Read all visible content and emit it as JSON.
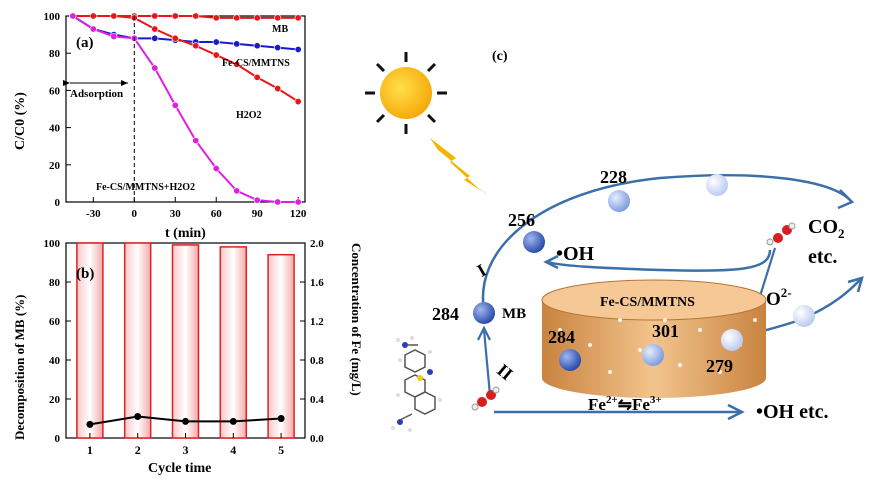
{
  "chart_data": [
    {
      "panel": "(a)",
      "type": "line",
      "xlabel": "t (min)",
      "ylabel": "C/C0 (%)",
      "xlim": [
        -50,
        125
      ],
      "ylim": [
        0,
        100
      ],
      "xticks": [
        -30,
        0,
        30,
        60,
        90,
        120
      ],
      "yticks": [
        0,
        20,
        40,
        60,
        80,
        100
      ],
      "annotation": "Adsorption",
      "series": [
        {
          "name": "MB",
          "color": "#e8161b",
          "label": "MB",
          "x": [
            -45,
            -30,
            -15,
            0,
            15,
            30,
            45,
            60,
            75,
            90,
            105,
            120
          ],
          "y": [
            100,
            100,
            100,
            100,
            100,
            100,
            100,
            99,
            99,
            99,
            99,
            99
          ]
        },
        {
          "name": "Fe-CS/MMTNS",
          "color": "#1a1acc",
          "label": "Fe-CS/MMTNS",
          "x": [
            -45,
            -30,
            -15,
            0,
            15,
            30,
            45,
            60,
            75,
            90,
            105,
            120
          ],
          "y": [
            100,
            93,
            90,
            88,
            88,
            87,
            86,
            86,
            85,
            84,
            83,
            82
          ]
        },
        {
          "name": "H2O2",
          "color": "#e8161b",
          "label": "H2O2",
          "x": [
            -45,
            -30,
            -15,
            0,
            15,
            30,
            45,
            60,
            75,
            90,
            105,
            120
          ],
          "y": [
            100,
            100,
            100,
            99,
            93,
            88,
            84,
            79,
            74,
            67,
            61,
            54
          ]
        },
        {
          "name": "Fe-CS/MMTNS+H2O2",
          "color": "#e020e0",
          "label": "Fe-CS/MMTNS+H2O2",
          "x": [
            -45,
            -30,
            -15,
            0,
            15,
            30,
            45,
            60,
            75,
            90,
            105,
            120
          ],
          "y": [
            100,
            93,
            89,
            88,
            72,
            52,
            33,
            18,
            6,
            1,
            0,
            0
          ]
        }
      ]
    },
    {
      "panel": "(b)",
      "type": "bar",
      "xlabel": "Cycle time",
      "ylabel": "Decomposition of MB (%)",
      "ylabel_right": "Concentration of Fe (mg/L)",
      "categories": [
        "1",
        "2",
        "3",
        "4",
        "5"
      ],
      "ylim": [
        0,
        100
      ],
      "yticks": [
        0,
        20,
        40,
        60,
        80,
        100
      ],
      "ylim_right": [
        0,
        2.0
      ],
      "yticks_right": [
        "0.0",
        "0.4",
        "0.8",
        "1.2",
        "1.6",
        "2.0"
      ],
      "bars": [
        100,
        100,
        99,
        98,
        94
      ],
      "fe_line": [
        0.14,
        0.22,
        0.17,
        0.17,
        0.2
      ]
    }
  ],
  "schematic": {
    "label": "(c)",
    "cylinder_label": "Fe-CS/MMTNS",
    "nodes": [
      "284",
      "256",
      "228",
      "284",
      "301",
      "279"
    ],
    "mb_label": "MB",
    "oh_label": "•OH",
    "co2_label": "CO2 etc.",
    "o2_label": "O2-",
    "path_i": "I",
    "path_ii": "II",
    "fe_label": "Fe2+⇋Fe3+",
    "oh_etc": "•OH etc."
  }
}
